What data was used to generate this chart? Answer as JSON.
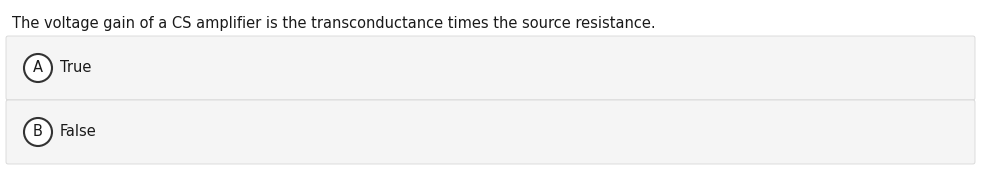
{
  "question": "The voltage gain of a CS amplifier is the transconductance times the source resistance.",
  "options": [
    {
      "label": "A",
      "text": "True"
    },
    {
      "label": "B",
      "text": "False"
    }
  ],
  "bg_color": "#ffffff",
  "option_bg_color": "#f5f5f5",
  "option_border_color": "#d0d0d0",
  "text_color": "#1a1a1a",
  "circle_edge_color": "#333333",
  "question_fontsize": 10.5,
  "option_fontsize": 10.5,
  "label_fontsize": 10.5
}
